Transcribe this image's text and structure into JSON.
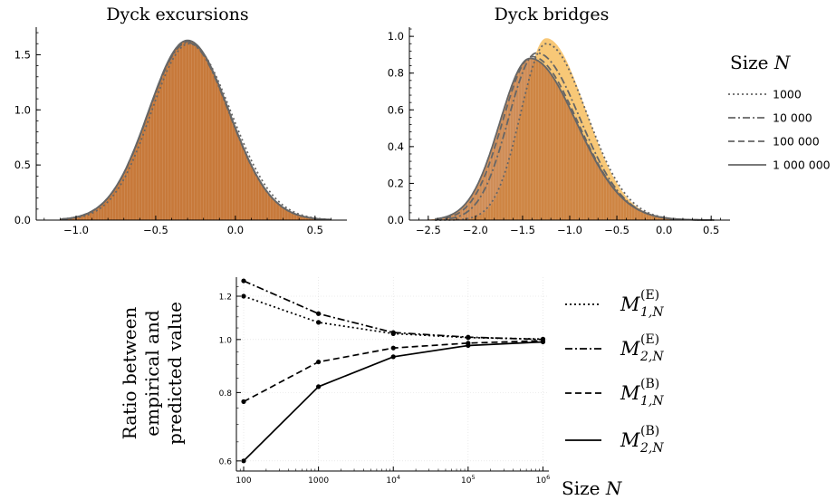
{
  "chart_data": [
    {
      "type": "area",
      "title": "Dyck excursions",
      "xlim": [
        -1.25,
        0.7
      ],
      "ylim": [
        0,
        1.75
      ],
      "xticks": [
        -1.0,
        -0.5,
        0.0,
        0.5
      ],
      "xtick_labels": [
        "−1.0",
        "−0.5",
        "0.0",
        "0.5"
      ],
      "yticks": [
        0.0,
        0.5,
        1.0,
        1.5
      ],
      "ytick_labels": [
        "0.0",
        "0.5",
        "1.0",
        "1.5"
      ],
      "grid": false,
      "histogram_fill": "#c7793a",
      "histogram": {
        "mean": -0.3,
        "sd_left": 0.245,
        "sd_right": 0.26,
        "peak": 1.63,
        "x_range": [
          -1.1,
          0.55
        ]
      },
      "series": [
        {
          "name": "1000",
          "dash": "dotted",
          "mean": -0.29,
          "sd_left": 0.24,
          "sd_right": 0.265,
          "peak": 1.6
        },
        {
          "name": "10 000",
          "dash": "dashdot",
          "mean": -0.3,
          "sd_left": 0.245,
          "sd_right": 0.26,
          "peak": 1.61
        },
        {
          "name": "100 000",
          "dash": "dashed",
          "mean": -0.3,
          "sd_left": 0.245,
          "sd_right": 0.26,
          "peak": 1.62
        },
        {
          "name": "1 000 000",
          "dash": "solid",
          "mean": -0.3,
          "sd_left": 0.245,
          "sd_right": 0.26,
          "peak": 1.63
        }
      ]
    },
    {
      "type": "area",
      "title": "Dyck bridges",
      "xlim": [
        -2.7,
        0.7
      ],
      "ylim": [
        0,
        1.05
      ],
      "xticks": [
        -2.5,
        -2.0,
        -1.5,
        -1.0,
        -0.5,
        0.0,
        0.5
      ],
      "xtick_labels": [
        "−2.5",
        "−2.0",
        "−1.5",
        "−1.0",
        "−0.5",
        "0.0",
        "0.5"
      ],
      "yticks": [
        0.0,
        0.2,
        0.4,
        0.6,
        0.8,
        1.0
      ],
      "ytick_labels": [
        "0.0",
        "0.2",
        "0.4",
        "0.6",
        "0.8",
        "1.0"
      ],
      "grid": false,
      "histogram_fill": "#c7793a",
      "overlay_fill": "#f5b54a",
      "histogram": {
        "mean": -1.42,
        "sd_left": 0.32,
        "sd_right": 0.5,
        "peak": 0.88,
        "x_range": [
          -2.5,
          0.2
        ]
      },
      "overlay": {
        "mean": -1.25,
        "sd_left": 0.26,
        "sd_right": 0.42,
        "peak": 0.99,
        "x_range": [
          -2.2,
          0.2
        ]
      },
      "series": [
        {
          "name": "1000",
          "dash": "dotted",
          "mean": -1.25,
          "sd_left": 0.27,
          "sd_right": 0.43,
          "peak": 0.96
        },
        {
          "name": "10 000",
          "dash": "dashdot",
          "mean": -1.35,
          "sd_left": 0.3,
          "sd_right": 0.46,
          "peak": 0.91
        },
        {
          "name": "100 000",
          "dash": "dashed",
          "mean": -1.4,
          "sd_left": 0.31,
          "sd_right": 0.48,
          "peak": 0.89
        },
        {
          "name": "1 000 000",
          "dash": "solid",
          "mean": -1.42,
          "sd_left": 0.32,
          "sd_right": 0.49,
          "peak": 0.88
        }
      ]
    },
    {
      "type": "line",
      "xlabel": "Size N",
      "ylabel": [
        "Ratio between",
        "empirical and",
        "predicted value"
      ],
      "x_scale": "log",
      "y_scale": "log",
      "xlim": [
        80,
        1200000
      ],
      "ylim": [
        0.575,
        1.3
      ],
      "x": [
        100,
        1000,
        10000,
        100000,
        1000000
      ],
      "xtick_labels": [
        "100",
        "1000",
        "10^4",
        "10^5",
        "10^6"
      ],
      "yticks": [
        0.6,
        0.8,
        1.0,
        1.2
      ],
      "ytick_labels": [
        "0.6",
        "0.8",
        "1.0",
        "1.2"
      ],
      "grid": true,
      "series": [
        {
          "name": "M_{1,N}^{(E)}",
          "dash": "dotted",
          "values": [
            1.2,
            1.075,
            1.025,
            1.008,
            1.002
          ]
        },
        {
          "name": "M_{2,N}^{(E)}",
          "dash": "dashdot",
          "values": [
            1.28,
            1.115,
            1.03,
            1.01,
            1.0
          ]
        },
        {
          "name": "M_{1,N}^{(B)}",
          "dash": "dashed",
          "values": [
            0.77,
            0.91,
            0.965,
            0.985,
            0.995
          ]
        },
        {
          "name": "M_{2,N}^{(B)}",
          "dash": "solid",
          "values": [
            0.6,
            0.82,
            0.93,
            0.975,
            0.99
          ]
        }
      ]
    }
  ],
  "legend_top": {
    "title_prefix": "Size ",
    "title_var": "N",
    "items": [
      "1000",
      "10 000",
      "100 000",
      "1 000 000"
    ]
  },
  "legend_bottom": {
    "items": [
      {
        "base": "M",
        "sup": "(E)",
        "sub": "1,N"
      },
      {
        "base": "M",
        "sup": "(E)",
        "sub": "2,N"
      },
      {
        "base": "M",
        "sup": "(B)",
        "sub": "1,N"
      },
      {
        "base": "M",
        "sup": "(B)",
        "sub": "2,N"
      }
    ]
  },
  "colors": {
    "histogram": "#c7793a",
    "overlay": "#f5b54a",
    "curve": "#666666",
    "axis": "#000000"
  }
}
